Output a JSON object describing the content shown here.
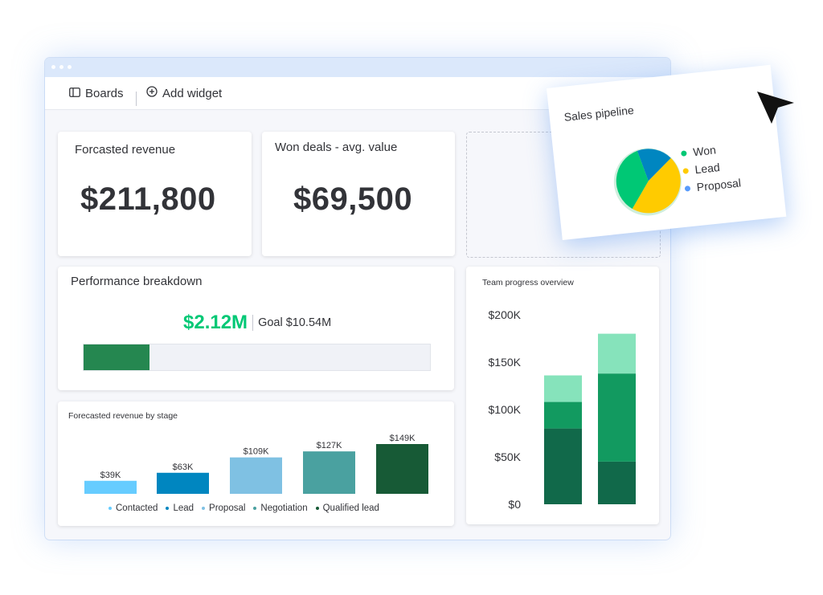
{
  "toolbar": {
    "boards_label": "Boards",
    "add_widget_label": "Add widget"
  },
  "widgets": {
    "forecasted": {
      "title": "Forcasted revenue",
      "value": "$211,800"
    },
    "won_deals": {
      "title": "Won deals - avg. value",
      "value": "$69,500"
    },
    "performance": {
      "title": "Performance breakdown",
      "current": "$2.12M",
      "goal": "Goal $10.54M",
      "progress": 0.19
    },
    "team": {
      "title": "Team progress overview"
    },
    "stage": {
      "title": "Forecasted revenue by stage"
    }
  },
  "colors": {
    "accent_green": "#00c875",
    "progress_fill": "#258750",
    "won": "#00c875",
    "lead": "#ffcb00",
    "proposal": "#0073ea"
  },
  "popup": {
    "title": "Sales pipeline",
    "legend": [
      {
        "label": "Won",
        "color": "#00c875"
      },
      {
        "label": "Lead",
        "color": "#ffcb00"
      },
      {
        "label": "Proposal",
        "color": "#579bfc"
      }
    ],
    "pie": [
      {
        "label": "Won",
        "value": 36,
        "color": "#00c875"
      },
      {
        "label": "Lead",
        "value": 46,
        "color": "#ffcb00"
      },
      {
        "label": "Proposal",
        "value": 18,
        "color": "#0086c0"
      }
    ]
  },
  "icons": {
    "boards": "board-icon",
    "add": "plus-circle-icon",
    "cursor": "arrow-cursor-icon"
  },
  "chart_data": [
    {
      "type": "bar",
      "title": "Forecasted revenue by stage",
      "categories": [
        "Contacted",
        "Lead",
        "Proposal",
        "Negotiation",
        "Qualified lead"
      ],
      "values": [
        39,
        63,
        109,
        127,
        149
      ],
      "value_labels": [
        "$39K",
        "$63K",
        "$109K",
        "$127K",
        "$149K"
      ],
      "colors": [
        "#66ccff",
        "#0086c0",
        "#7fc1e3",
        "#4aa1a0",
        "#175a36"
      ],
      "legend": [
        "Contacted",
        "Lead",
        "Proposal",
        "Negotiation",
        "Qualified lead"
      ],
      "legend_placement": "bottom"
    },
    {
      "type": "bar",
      "stacked": true,
      "title": "Team progress overview",
      "y_ticks": [
        "$200K",
        "$150K",
        "$100K",
        "$50K",
        "$0"
      ],
      "ylim": [
        0,
        200
      ],
      "columns": [
        {
          "segments": [
            {
              "value": 80,
              "color": "#11694a"
            },
            {
              "value": 28,
              "color": "#129a60"
            },
            {
              "value": 28,
              "color": "#86e3bb"
            }
          ]
        },
        {
          "segments": [
            {
              "value": 45,
              "color": "#11694a"
            },
            {
              "value": 93,
              "color": "#129a60"
            },
            {
              "value": 42,
              "color": "#86e3bb"
            }
          ]
        }
      ]
    }
  ]
}
